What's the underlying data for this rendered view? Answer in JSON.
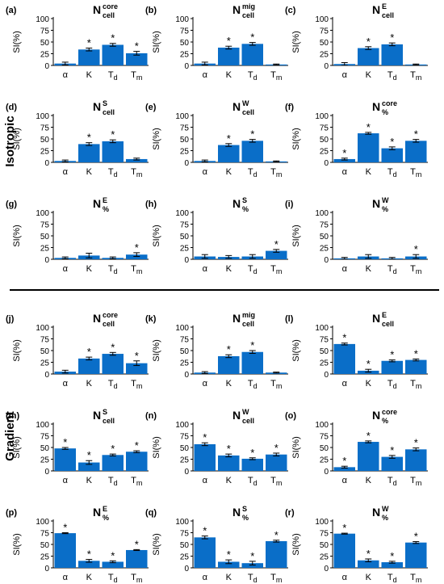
{
  "sections": [
    {
      "label": "Isotropic"
    },
    {
      "label": "Gradient"
    }
  ],
  "chart_data": [
    {
      "panel": "(a)",
      "title": {
        "base": "N",
        "sup": "core",
        "sub": "cell"
      },
      "type": "bar",
      "categories": [
        "α",
        "K",
        "Td",
        "Tm"
      ],
      "values": [
        4,
        34,
        44,
        26
      ],
      "errors": [
        3,
        3,
        3,
        4
      ],
      "significant": [
        false,
        true,
        true,
        true
      ],
      "ylabel": "SI(%)",
      "yticks": [
        0,
        25,
        50,
        75,
        100
      ],
      "ylim": [
        0,
        100
      ]
    },
    {
      "panel": "(b)",
      "title": {
        "base": "N",
        "sup": "mig",
        "sub": "cell"
      },
      "type": "bar",
      "categories": [
        "α",
        "K",
        "Td",
        "Tm"
      ],
      "values": [
        4,
        38,
        46,
        2
      ],
      "errors": [
        3,
        3,
        3,
        1
      ],
      "significant": [
        false,
        true,
        true,
        false
      ],
      "ylabel": "SI(%)",
      "yticks": [
        0,
        25,
        50,
        75,
        100
      ],
      "ylim": [
        0,
        100
      ]
    },
    {
      "panel": "(c)",
      "title": {
        "base": "N",
        "sup": "E",
        "sub": "cell"
      },
      "type": "bar",
      "categories": [
        "α",
        "K",
        "Td",
        "Tm"
      ],
      "values": [
        3,
        37,
        45,
        2
      ],
      "errors": [
        3,
        3,
        3,
        1
      ],
      "significant": [
        false,
        true,
        true,
        false
      ],
      "ylabel": "SI(%)",
      "yticks": [
        0,
        25,
        50,
        75,
        100
      ],
      "ylim": [
        0,
        100
      ]
    },
    {
      "panel": "(d)",
      "title": {
        "base": "N",
        "sup": "S",
        "sub": "cell"
      },
      "type": "bar",
      "categories": [
        "α",
        "K",
        "Td",
        "Tm"
      ],
      "values": [
        3,
        39,
        45,
        7
      ],
      "errors": [
        2,
        3,
        3,
        2
      ],
      "significant": [
        false,
        true,
        true,
        false
      ],
      "ylabel": "SI(%)",
      "yticks": [
        0,
        25,
        50,
        75,
        100
      ],
      "ylim": [
        0,
        100
      ]
    },
    {
      "panel": "(e)",
      "title": {
        "base": "N",
        "sup": "W",
        "sub": "cell"
      },
      "type": "bar",
      "categories": [
        "α",
        "K",
        "Td",
        "Tm"
      ],
      "values": [
        3,
        37,
        46,
        2
      ],
      "errors": [
        2,
        3,
        3,
        1
      ],
      "significant": [
        false,
        true,
        true,
        false
      ],
      "ylabel": "SI(%)",
      "yticks": [
        0,
        25,
        50,
        75,
        100
      ],
      "ylim": [
        0,
        100
      ]
    },
    {
      "panel": "(f)",
      "title": {
        "base": "N",
        "sup": "core",
        "sub": "%"
      },
      "type": "bar",
      "categories": [
        "α",
        "K",
        "Td",
        "Tm"
      ],
      "values": [
        7,
        62,
        30,
        46
      ],
      "errors": [
        2,
        2,
        3,
        3
      ],
      "significant": [
        true,
        true,
        true,
        true
      ],
      "ylabel": "SI(%)",
      "yticks": [
        0,
        25,
        50,
        75,
        100
      ],
      "ylim": [
        0,
        100
      ]
    },
    {
      "panel": "(g)",
      "title": {
        "base": "N",
        "sup": "E",
        "sub": "%"
      },
      "type": "bar",
      "categories": [
        "α",
        "K",
        "Td",
        "Tm"
      ],
      "values": [
        3,
        8,
        3,
        10
      ],
      "errors": [
        2,
        5,
        2,
        4
      ],
      "significant": [
        false,
        false,
        false,
        true
      ],
      "ylabel": "SI(%)",
      "yticks": [
        0,
        25,
        50,
        75,
        100
      ],
      "ylim": [
        0,
        100
      ]
    },
    {
      "panel": "(h)",
      "title": {
        "base": "N",
        "sup": "S",
        "sub": "%"
      },
      "type": "bar",
      "categories": [
        "α",
        "K",
        "Td",
        "Tm"
      ],
      "values": [
        6,
        5,
        6,
        18
      ],
      "errors": [
        4,
        3,
        4,
        3
      ],
      "significant": [
        false,
        false,
        false,
        true
      ],
      "ylabel": "SI(%)",
      "yticks": [
        0,
        25,
        50,
        75,
        100
      ],
      "ylim": [
        0,
        100
      ]
    },
    {
      "panel": "(i)",
      "title": {
        "base": "N",
        "sup": "W",
        "sub": "%"
      },
      "type": "bar",
      "categories": [
        "α",
        "K",
        "Td",
        "Tm"
      ],
      "values": [
        2,
        6,
        2,
        6
      ],
      "errors": [
        2,
        4,
        2,
        4
      ],
      "significant": [
        false,
        false,
        false,
        true
      ],
      "ylabel": "SI(%)",
      "yticks": [
        0,
        25,
        50,
        75,
        100
      ],
      "ylim": [
        0,
        100
      ]
    },
    {
      "panel": "(j)",
      "title": {
        "base": "N",
        "sup": "core",
        "sub": "cell"
      },
      "type": "bar",
      "categories": [
        "α",
        "K",
        "Td",
        "Tm"
      ],
      "values": [
        5,
        33,
        43,
        23
      ],
      "errors": [
        3,
        3,
        3,
        5
      ],
      "significant": [
        false,
        true,
        true,
        true
      ],
      "ylabel": "SI(%)",
      "yticks": [
        0,
        25,
        50,
        75,
        100
      ],
      "ylim": [
        0,
        100
      ]
    },
    {
      "panel": "(k)",
      "title": {
        "base": "N",
        "sup": "mig",
        "sub": "cell"
      },
      "type": "bar",
      "categories": [
        "α",
        "K",
        "Td",
        "Tm"
      ],
      "values": [
        3,
        38,
        47,
        3
      ],
      "errors": [
        2,
        3,
        3,
        1
      ],
      "significant": [
        false,
        true,
        true,
        false
      ],
      "ylabel": "SI(%)",
      "yticks": [
        0,
        25,
        50,
        75,
        100
      ],
      "ylim": [
        0,
        100
      ]
    },
    {
      "panel": "(l)",
      "title": {
        "base": "N",
        "sup": "E",
        "sub": "cell"
      },
      "type": "bar",
      "categories": [
        "α",
        "K",
        "Td",
        "Tm"
      ],
      "values": [
        64,
        7,
        28,
        30
      ],
      "errors": [
        2,
        3,
        2,
        2
      ],
      "significant": [
        true,
        true,
        true,
        true
      ],
      "ylabel": "SI(%)",
      "yticks": [
        0,
        25,
        50,
        75,
        100
      ],
      "ylim": [
        0,
        100
      ]
    },
    {
      "panel": "(m)",
      "title": {
        "base": "N",
        "sup": "S",
        "sub": "cell"
      },
      "type": "bar",
      "categories": [
        "α",
        "K",
        "Td",
        "Tm"
      ],
      "values": [
        48,
        18,
        34,
        41
      ],
      "errors": [
        2,
        4,
        2,
        2
      ],
      "significant": [
        true,
        true,
        true,
        true
      ],
      "ylabel": "SI(%)",
      "yticks": [
        0,
        25,
        50,
        75,
        100
      ],
      "ylim": [
        0,
        100
      ]
    },
    {
      "panel": "(n)",
      "title": {
        "base": "N",
        "sup": "W",
        "sub": "cell"
      },
      "type": "bar",
      "categories": [
        "α",
        "K",
        "Td",
        "Tm"
      ],
      "values": [
        57,
        33,
        26,
        35
      ],
      "errors": [
        3,
        3,
        2,
        3
      ],
      "significant": [
        true,
        true,
        true,
        true
      ],
      "ylabel": "SI(%)",
      "yticks": [
        0,
        25,
        50,
        75,
        100
      ],
      "ylim": [
        0,
        100
      ]
    },
    {
      "panel": "(o)",
      "title": {
        "base": "N",
        "sup": "core",
        "sub": "%"
      },
      "type": "bar",
      "categories": [
        "α",
        "K",
        "Td",
        "Tm"
      ],
      "values": [
        8,
        62,
        30,
        46
      ],
      "errors": [
        2,
        2,
        3,
        3
      ],
      "significant": [
        true,
        true,
        true,
        true
      ],
      "ylabel": "SI(%)",
      "yticks": [
        0,
        25,
        50,
        75,
        100
      ],
      "ylim": [
        0,
        100
      ]
    },
    {
      "panel": "(p)",
      "title": {
        "base": "N",
        "sup": "E",
        "sub": "%"
      },
      "type": "bar",
      "categories": [
        "α",
        "K",
        "Td",
        "Tm"
      ],
      "values": [
        74,
        15,
        13,
        38
      ],
      "errors": [
        1,
        3,
        2,
        1
      ],
      "significant": [
        true,
        true,
        true,
        true
      ],
      "ylabel": "SI(%)",
      "yticks": [
        0,
        25,
        50,
        75,
        100
      ],
      "ylim": [
        0,
        100
      ]
    },
    {
      "panel": "(q)",
      "title": {
        "base": "N",
        "sup": "S",
        "sub": "%"
      },
      "type": "bar",
      "categories": [
        "α",
        "K",
        "Td",
        "Tm"
      ],
      "values": [
        65,
        13,
        10,
        57
      ],
      "errors": [
        3,
        4,
        4,
        2
      ],
      "significant": [
        true,
        true,
        true,
        true
      ],
      "ylabel": "SI(%)",
      "yticks": [
        0,
        25,
        50,
        75,
        100
      ],
      "ylim": [
        0,
        100
      ]
    },
    {
      "panel": "(r)",
      "title": {
        "base": "N",
        "sup": "W",
        "sub": "%"
      },
      "type": "bar",
      "categories": [
        "α",
        "K",
        "Td",
        "Tm"
      ],
      "values": [
        73,
        16,
        12,
        54
      ],
      "errors": [
        1,
        3,
        2,
        2
      ],
      "significant": [
        true,
        true,
        true,
        true
      ],
      "ylabel": "SI(%)",
      "yticks": [
        0,
        25,
        50,
        75,
        100
      ],
      "ylim": [
        0,
        100
      ]
    }
  ],
  "style": {
    "bar_color": "#0a6ec8",
    "axis_color": "#000000",
    "significance_marker": "*"
  }
}
